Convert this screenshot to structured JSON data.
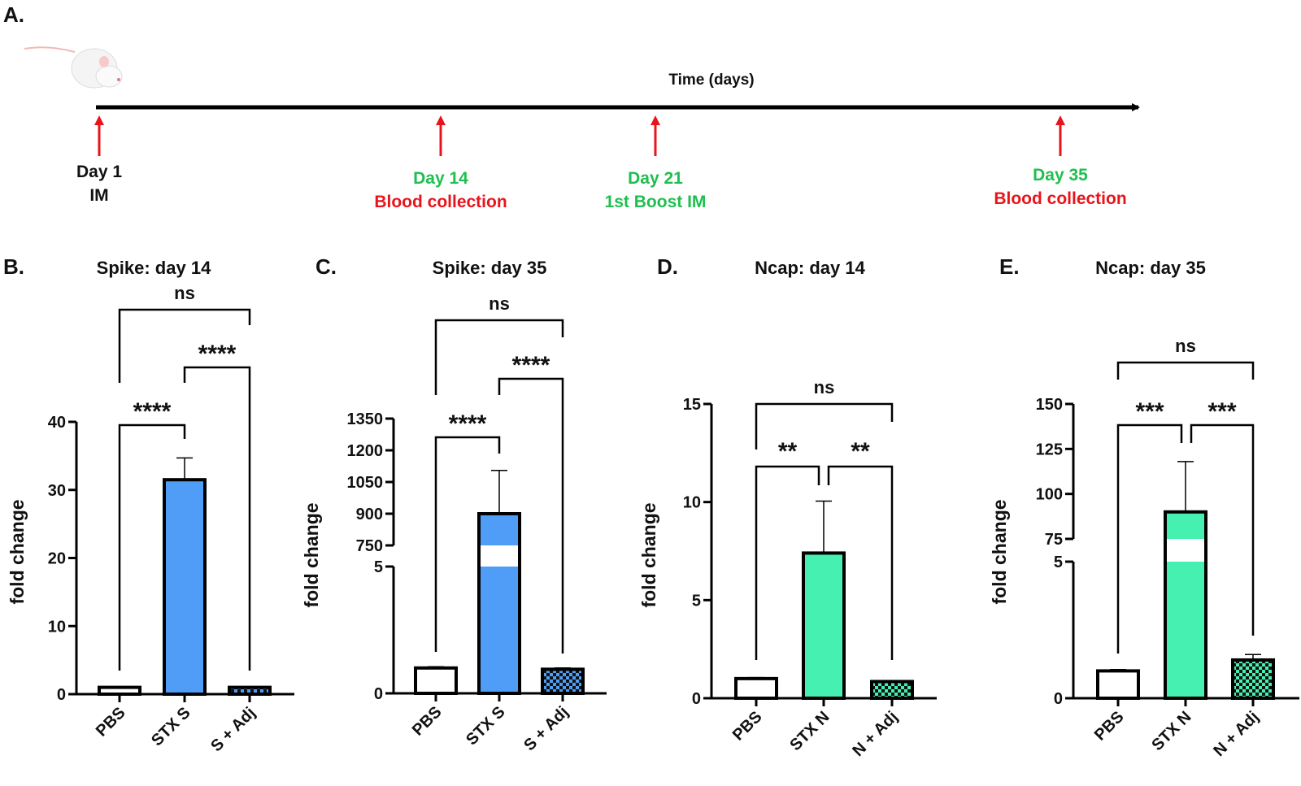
{
  "colors": {
    "spike": "#4f9df7",
    "ncap": "#45f0b0",
    "arrow": "#e8141b",
    "green_text": "#1fbf4f",
    "red_text": "#e8141b"
  },
  "timeline": {
    "panel_label": "A.",
    "axis_label": "Time (days)",
    "icon": "mouse-image",
    "events": [
      {
        "lines": [
          "Day 1",
          "IM"
        ],
        "colors": [
          "black",
          "black"
        ]
      },
      {
        "lines": [
          "Day 14",
          "Blood collection"
        ],
        "colors": [
          "green",
          "red"
        ]
      },
      {
        "lines": [
          "Day 21",
          "1st Boost IM"
        ],
        "colors": [
          "green",
          "green"
        ]
      },
      {
        "lines": [
          "Day 35",
          "Blood collection"
        ],
        "colors": [
          "green",
          "red"
        ]
      }
    ]
  },
  "chart_data": [
    {
      "panel_label": "B.",
      "type": "bar",
      "title": "Spike: day 14",
      "ylabel": "fold change",
      "categories": [
        "PBS",
        "STX S",
        "S + Adj"
      ],
      "values": [
        1.0,
        31.5,
        1.0
      ],
      "error_upper": [
        1.05,
        34.7,
        1.1
      ],
      "fills": [
        "white",
        "spike",
        "spike-checkered"
      ],
      "yticks": [
        0,
        10,
        20,
        30,
        40
      ],
      "ylim": [
        0,
        40
      ],
      "axis_break": null,
      "comparisons": [
        {
          "groups": [
            "PBS",
            "STX S"
          ],
          "label": "****"
        },
        {
          "groups": [
            "STX S",
            "S + Adj"
          ],
          "label": "****"
        },
        {
          "groups": [
            "PBS",
            "S + Adj"
          ],
          "label": "ns"
        }
      ]
    },
    {
      "panel_label": "C.",
      "type": "bar",
      "title": "Spike: day 35",
      "ylabel": "fold change",
      "categories": [
        "PBS",
        "STX S",
        "S + Adj"
      ],
      "values": [
        1.0,
        900,
        0.95
      ],
      "error_upper": [
        1.05,
        1105,
        1.0
      ],
      "fills": [
        "white",
        "spike",
        "spike-checkered"
      ],
      "yticks": [
        0,
        5,
        750,
        900,
        1050,
        1200,
        1350
      ],
      "ylim": [
        0,
        1350
      ],
      "axis_break": [
        5,
        750
      ],
      "comparisons": [
        {
          "groups": [
            "PBS",
            "STX S"
          ],
          "label": "****"
        },
        {
          "groups": [
            "STX S",
            "S + Adj"
          ],
          "label": "****"
        },
        {
          "groups": [
            "PBS",
            "S + Adj"
          ],
          "label": "ns"
        }
      ]
    },
    {
      "panel_label": "D.",
      "type": "bar",
      "title": "Ncap: day 14",
      "ylabel": "fold change",
      "categories": [
        "PBS",
        "STX N",
        "N + Adj"
      ],
      "values": [
        1.0,
        7.4,
        0.85
      ],
      "error_upper": [
        1.05,
        10.05,
        0.9
      ],
      "fills": [
        "white",
        "ncap",
        "ncap-checkered"
      ],
      "yticks": [
        0,
        5,
        10,
        15
      ],
      "ylim": [
        0,
        15
      ],
      "axis_break": null,
      "comparisons": [
        {
          "groups": [
            "PBS",
            "STX N"
          ],
          "label": "**"
        },
        {
          "groups": [
            "STX N",
            "N + Adj"
          ],
          "label": "**"
        },
        {
          "groups": [
            "PBS",
            "N + Adj"
          ],
          "label": "ns"
        }
      ]
    },
    {
      "panel_label": "E.",
      "type": "bar",
      "title": "Ncap: day 35",
      "ylabel": "fold change",
      "categories": [
        "PBS",
        "STX N",
        "N + Adj"
      ],
      "values": [
        1.0,
        90,
        1.4
      ],
      "error_upper": [
        1.05,
        118,
        1.6
      ],
      "fills": [
        "white",
        "ncap",
        "ncap-checkered"
      ],
      "yticks": [
        0,
        5,
        75,
        100,
        125,
        150
      ],
      "ylim": [
        0,
        150
      ],
      "axis_break": [
        5,
        75
      ],
      "comparisons": [
        {
          "groups": [
            "PBS",
            "STX N"
          ],
          "label": "***"
        },
        {
          "groups": [
            "STX N",
            "N + Adj"
          ],
          "label": "***"
        },
        {
          "groups": [
            "PBS",
            "N + Adj"
          ],
          "label": "ns"
        }
      ]
    }
  ]
}
